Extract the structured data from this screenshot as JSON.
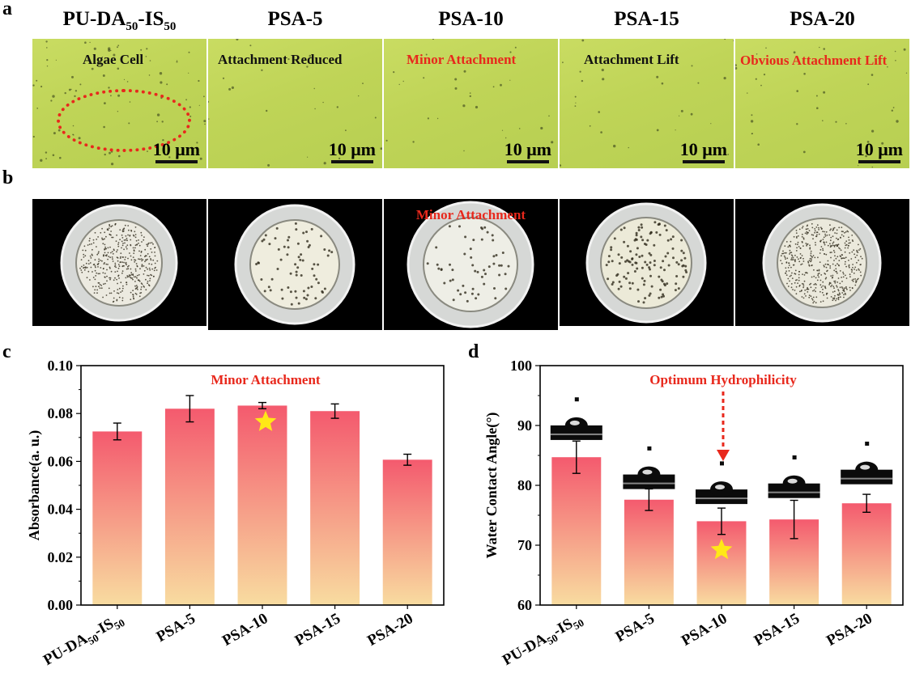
{
  "panel_labels": {
    "a": "a",
    "b": "b",
    "c": "c",
    "d": "d"
  },
  "columns": [
    {
      "pre": "PU-DA",
      "sub1": "50",
      "mid": "-IS",
      "sub2": "50"
    },
    {
      "pre": "PSA-5",
      "sub1": "",
      "mid": "",
      "sub2": ""
    },
    {
      "pre": "PSA-10",
      "sub1": "",
      "mid": "",
      "sub2": ""
    },
    {
      "pre": "PSA-15",
      "sub1": "",
      "mid": "",
      "sub2": ""
    },
    {
      "pre": "PSA-20",
      "sub1": "",
      "mid": "",
      "sub2": ""
    }
  ],
  "micro_notes": [
    "Algae Cell",
    "Attachment Reduced",
    "Minor Attachment",
    "Attachment Lift",
    "Obvious Attachment Lift"
  ],
  "micro_note_colors": [
    "#111111",
    "#111111",
    "#e8281c",
    "#111111",
    "#e8281c"
  ],
  "scale_bar_label": "10 μm",
  "dish_annotation": "Minor Attachment",
  "colors": {
    "red_annotation": "#e8281c",
    "bar_top": "#f45a6e",
    "bar_bottom": "#f8dca0",
    "star": "#ffe817"
  },
  "chart_data": [
    {
      "type": "bar",
      "panel": "c",
      "categories": [
        "PU-DA50-IS50",
        "PSA-5",
        "PSA-10",
        "PSA-15",
        "PSA-20"
      ],
      "values": [
        0.0725,
        0.082,
        0.0833,
        0.081,
        0.0607
      ],
      "errors": [
        0.0035,
        0.0055,
        0.0013,
        0.003,
        0.0023
      ],
      "ylabel": "Absorbance(a. u.)",
      "ylim": [
        0,
        0.1
      ],
      "yticks": [
        "0.00",
        "0.02",
        "0.04",
        "0.06",
        "0.08",
        "0.10"
      ],
      "annotation": "Minor Attachment",
      "star_category": "PSA-10",
      "grid": false
    },
    {
      "type": "bar",
      "panel": "d",
      "categories": [
        "PU-DA50-IS50",
        "PSA-5",
        "PSA-10",
        "PSA-15",
        "PSA-20"
      ],
      "values": [
        84.7,
        77.6,
        74.0,
        74.3,
        77.0
      ],
      "errors": [
        2.7,
        1.8,
        2.2,
        3.2,
        1.5
      ],
      "ylabel": "Water Contact Angle(°)",
      "ylim": [
        60,
        100
      ],
      "yticks": [
        "60",
        "70",
        "80",
        "90",
        "100"
      ],
      "annotation": "Optimum Hydrophilicity",
      "star_category": "PSA-10",
      "grid": false
    }
  ]
}
